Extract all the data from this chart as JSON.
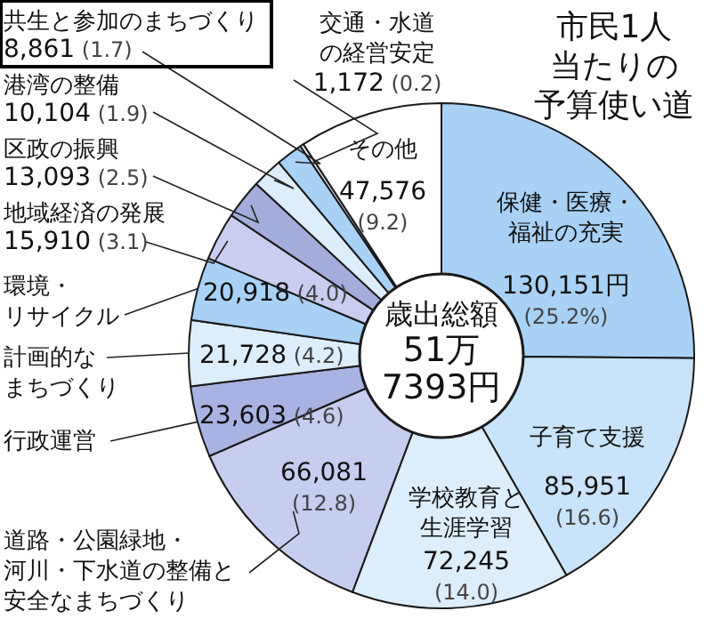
{
  "chart_data": {
    "type": "donut",
    "title": "市民1人当たりの予算使い道",
    "categories": [
      "保健・医療・福祉の充実",
      "子育て支援",
      "学校教育と生涯学習",
      "道路・公園緑地・河川・下水道の整備と安全なまちづくり",
      "行政運営",
      "計画的なまちづくり",
      "環境・リサイクル",
      "地域経済の発展",
      "区政の振興",
      "港湾の整備",
      "共生と参加のまちづくり",
      "交通・水道の経営安定",
      "その他"
    ],
    "values": [
      130151,
      85951,
      72245,
      66081,
      23603,
      21728,
      20918,
      15910,
      13093,
      10104,
      8861,
      1172,
      47576
    ],
    "value_labels": [
      "130,151円 (25.2%)",
      "85,951 (16.6)",
      "72,245 (14.0)",
      "66,081 (12.8)",
      "23,603 (4.6)",
      "21,728 (4.2)",
      "20,918 (4.0)",
      "15,910 (3.1)",
      "13,093 (2.5)",
      "10,104 (1.9)",
      "8,861 (1.7)",
      "1,172 (0.2)",
      "47,576 (9.2)"
    ],
    "colors": [
      "#a9d1f5",
      "#c8e3fa",
      "#dcedfb",
      "#c6cdee",
      "#a8b3e3",
      "#dcedfb",
      "#a9d1f5",
      "#c9cdef",
      "#a3acdb",
      "#dcedfb",
      "#a9d1f5",
      "#eef6fd",
      "#ffffff"
    ],
    "annotations": [
      "歳出総額 51万 7393円"
    ]
  }
}
